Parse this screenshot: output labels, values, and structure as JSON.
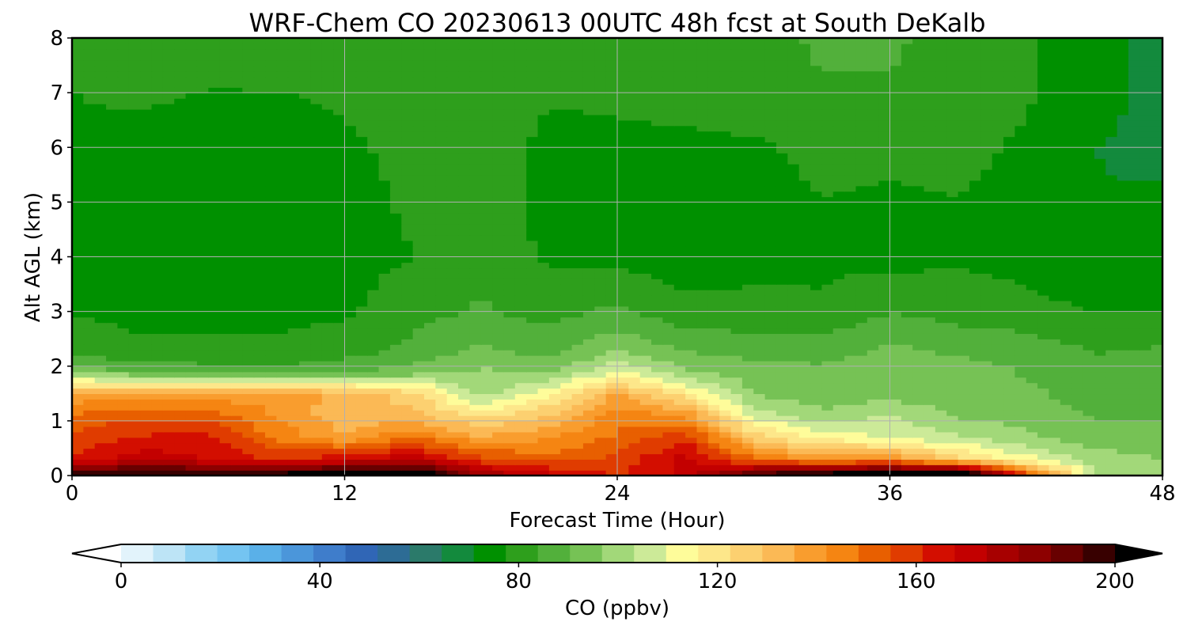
{
  "chart_data": {
    "type": "heatmap",
    "title": "WRF-Chem CO  20230613 00UTC 48h fcst at South DeKalb",
    "xlabel": "Forecast Time (Hour)",
    "ylabel": "Alt AGL (km)",
    "xlim": [
      0,
      48
    ],
    "ylim": [
      0,
      8
    ],
    "x_ticks": [
      0,
      12,
      24,
      36,
      48
    ],
    "y_ticks": [
      0,
      1,
      2,
      3,
      4,
      5,
      6,
      7,
      8
    ],
    "grid": true,
    "x": [
      0,
      3,
      6,
      9,
      12,
      15,
      18,
      21,
      24,
      27,
      30,
      33,
      36,
      39,
      42,
      45,
      48
    ],
    "y": [
      0.05,
      0.3,
      0.7,
      1.1,
      1.5,
      1.9,
      2.3,
      3,
      4,
      5,
      6,
      7,
      8
    ],
    "values": [
      [
        195,
        196,
        196,
        196,
        200,
        205,
        175,
        165,
        158,
        168,
        188,
        196,
        205,
        205,
        150,
        103,
        103
      ],
      [
        160,
        170,
        165,
        158,
        165,
        170,
        155,
        150,
        155,
        168,
        148,
        140,
        142,
        125,
        112,
        101,
        97
      ],
      [
        155,
        160,
        162,
        145,
        135,
        148,
        135,
        140,
        148,
        158,
        125,
        114,
        108,
        104,
        98,
        93,
        92
      ],
      [
        148,
        152,
        150,
        140,
        130,
        130,
        120,
        128,
        145,
        140,
        108,
        98,
        104,
        96,
        94,
        90,
        90
      ],
      [
        135,
        138,
        136,
        138,
        132,
        125,
        100,
        115,
        135,
        118,
        96,
        94,
        94,
        92,
        92,
        88,
        88
      ],
      [
        95,
        90,
        87,
        86,
        90,
        93,
        98,
        95,
        110,
        98,
        94,
        92,
        93,
        94,
        90,
        86,
        87
      ],
      [
        80,
        79,
        79,
        79,
        81,
        86,
        92,
        88,
        96,
        90,
        88,
        88,
        92,
        89,
        88,
        84,
        85
      ],
      [
        78,
        77,
        77,
        77,
        77,
        82,
        85,
        82,
        86,
        80,
        80,
        79,
        84,
        82,
        80,
        78,
        78
      ],
      [
        77,
        74,
        72,
        74,
        76,
        78,
        83,
        77,
        76,
        75,
        76,
        77,
        76,
        77,
        76,
        73,
        74
      ],
      [
        77,
        74,
        73,
        73,
        76,
        79,
        83,
        75,
        76,
        75,
        75,
        78,
        77,
        78,
        76,
        72,
        73
      ],
      [
        78,
        76,
        75,
        75,
        77,
        80,
        82,
        76,
        77,
        77,
        77,
        80,
        80,
        80,
        77,
        72,
        70
      ],
      [
        78,
        79,
        78,
        78,
        79,
        82,
        83,
        79,
        79,
        80,
        82,
        84,
        84,
        82,
        79,
        74,
        70
      ],
      [
        79,
        80,
        80,
        81,
        81,
        82,
        83,
        80,
        80,
        81,
        83,
        85,
        85,
        83,
        79,
        73,
        71
      ]
    ],
    "colorbar": {
      "label": "CO  (ppbv)",
      "range": [
        0,
        200
      ],
      "ticks": [
        0,
        40,
        80,
        120,
        160,
        200
      ],
      "extend": "both",
      "colors": [
        "#ffffff",
        "#e2f3fb",
        "#bde4f6",
        "#92d3f3",
        "#74c4f1",
        "#5ab0e8",
        "#4b96da",
        "#3f7dcb",
        "#3066b6",
        "#2d6c95",
        "#2b7a6a",
        "#138a3d",
        "#009000",
        "#2e9f1c",
        "#52b03b",
        "#76c255",
        "#a2d879",
        "#ccea98",
        "#fefc9a",
        "#fde78a",
        "#fcd070",
        "#fbb955",
        "#f99d2e",
        "#f58512",
        "#e85f00",
        "#e03c00",
        "#d30e00",
        "#c30000",
        "#a70000",
        "#8d0000",
        "#680000",
        "#380000",
        "#000000"
      ]
    }
  }
}
